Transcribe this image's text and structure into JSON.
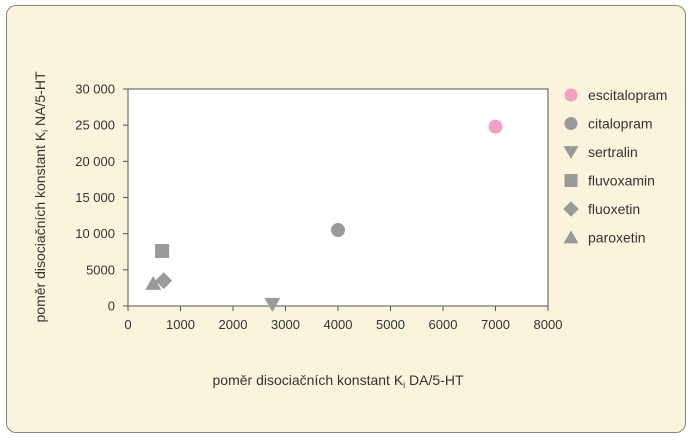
{
  "chart_data": {
    "type": "scatter",
    "xlabel": {
      "main": "poměr disociačních konstant K",
      "sub": "i",
      "rest": " DA/5-HT"
    },
    "ylabel": {
      "main": "poměr disociačních konstant K",
      "sub": "i",
      "rest": " NA/5-HT"
    },
    "xlim": [
      0,
      8000
    ],
    "ylim": [
      0,
      30000
    ],
    "x_ticks": [
      0,
      1000,
      2000,
      3000,
      4000,
      5000,
      6000,
      7000,
      8000
    ],
    "y_ticks": [
      0,
      5000,
      10000,
      15000,
      20000,
      25000,
      30000
    ],
    "x_tick_labels": [
      "0",
      "1000",
      "2000",
      "3000",
      "4000",
      "5000",
      "6000",
      "7000",
      "8000"
    ],
    "y_tick_labels": [
      "0",
      "5000",
      "10 000",
      "15 000",
      "20 000",
      "25 000",
      "30 000"
    ],
    "legend_position": "right",
    "series": [
      {
        "name": "escitalopram",
        "marker": "circle",
        "color": "#f2a0c4",
        "x": 7000,
        "y": 24800
      },
      {
        "name": "citalopram",
        "marker": "circle",
        "color": "#9a9a9a",
        "x": 4000,
        "y": 10500
      },
      {
        "name": "sertralin",
        "marker": "triangle-down",
        "color": "#9a9a9a",
        "x": 2750,
        "y": 250
      },
      {
        "name": "fluvoxamin",
        "marker": "square",
        "color": "#9a9a9a",
        "x": 650,
        "y": 7600
      },
      {
        "name": "fluoxetin",
        "marker": "diamond",
        "color": "#9a9a9a",
        "x": 680,
        "y": 3500
      },
      {
        "name": "paroxetin",
        "marker": "triangle-up",
        "color": "#9a9a9a",
        "x": 480,
        "y": 3100
      }
    ]
  }
}
